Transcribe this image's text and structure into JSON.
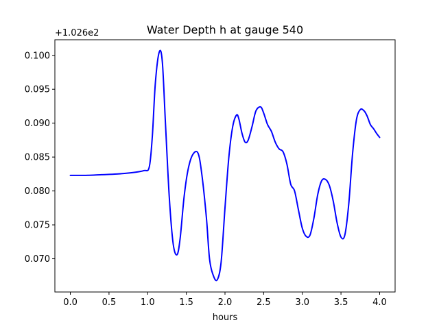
{
  "chart_data": {
    "type": "line",
    "title": "Water Depth h at gauge 540",
    "xlabel": "hours",
    "ylabel": "",
    "y_offset_label": "+1.026e2",
    "xlim": [
      -0.2,
      4.2
    ],
    "ylim": [
      0.0651,
      0.1023
    ],
    "x_ticks": [
      0.0,
      0.5,
      1.0,
      1.5,
      2.0,
      2.5,
      3.0,
      3.5,
      4.0
    ],
    "x_tick_labels": [
      "0.0",
      "0.5",
      "1.0",
      "1.5",
      "2.0",
      "2.5",
      "3.0",
      "3.5",
      "4.0"
    ],
    "y_ticks": [
      0.07,
      0.075,
      0.08,
      0.085,
      0.09,
      0.095,
      0.1
    ],
    "y_tick_labels": [
      "0.070",
      "0.075",
      "0.080",
      "0.085",
      "0.090",
      "0.095",
      "0.100"
    ],
    "grid": false,
    "series": [
      {
        "color": "#0000ff",
        "x": [
          0.0,
          0.2,
          0.4,
          0.6,
          0.8,
          0.95,
          1.02,
          1.06,
          1.1,
          1.15,
          1.19,
          1.23,
          1.28,
          1.33,
          1.38,
          1.42,
          1.47,
          1.52,
          1.58,
          1.65,
          1.7,
          1.76,
          1.8,
          1.85,
          1.9,
          1.95,
          2.0,
          2.05,
          2.1,
          2.15,
          2.18,
          2.22,
          2.26,
          2.3,
          2.35,
          2.4,
          2.46,
          2.5,
          2.55,
          2.6,
          2.65,
          2.7,
          2.75,
          2.8,
          2.85,
          2.9,
          2.95,
          3.0,
          3.05,
          3.1,
          3.15,
          3.2,
          3.25,
          3.3,
          3.35,
          3.4,
          3.45,
          3.5,
          3.55,
          3.6,
          3.65,
          3.7,
          3.75,
          3.8,
          3.84,
          3.88,
          3.92,
          3.96,
          4.0
        ],
        "y": [
          0.0823,
          0.0823,
          0.0824,
          0.0825,
          0.0827,
          0.083,
          0.0835,
          0.088,
          0.096,
          0.1005,
          0.099,
          0.09,
          0.079,
          0.0722,
          0.0706,
          0.073,
          0.079,
          0.083,
          0.0853,
          0.0856,
          0.0825,
          0.076,
          0.07,
          0.0675,
          0.0669,
          0.0695,
          0.0775,
          0.085,
          0.0895,
          0.0912,
          0.0906,
          0.0885,
          0.0872,
          0.0875,
          0.0895,
          0.0918,
          0.0924,
          0.0915,
          0.0898,
          0.0888,
          0.0872,
          0.0862,
          0.0858,
          0.084,
          0.081,
          0.08,
          0.0772,
          0.0745,
          0.0733,
          0.0735,
          0.076,
          0.0795,
          0.0815,
          0.0817,
          0.0808,
          0.0785,
          0.0753,
          0.0732,
          0.0735,
          0.078,
          0.0855,
          0.0905,
          0.092,
          0.0918,
          0.091,
          0.0898,
          0.0892,
          0.0885,
          0.0879
        ]
      }
    ]
  }
}
